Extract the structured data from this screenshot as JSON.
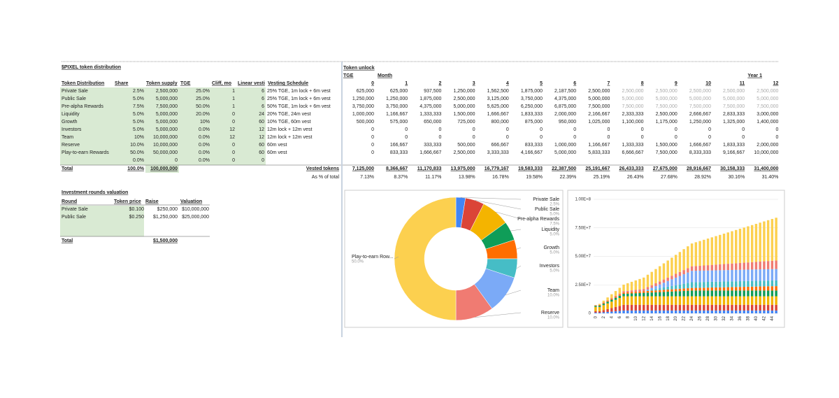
{
  "distribution": {
    "title": "$PIXEL token distribution",
    "columns": [
      "Token Distribution",
      "Share",
      "Token supply",
      "TGE",
      "Cliff, mo",
      "Linear vesti",
      "Vesting Schedule"
    ],
    "rows": [
      [
        "Private Sale",
        "2.5%",
        "2,500,000",
        "25.0%",
        "1",
        "6",
        "25% TGE, 1m lock + 6m vest"
      ],
      [
        "Public Sale",
        "5.0%",
        "5,000,000",
        "25.0%",
        "1",
        "6",
        "25% TGE, 1m lock + 6m vest"
      ],
      [
        "Pre-alpha Rewards",
        "7.5%",
        "7,500,000",
        "50.0%",
        "1",
        "6",
        "50% TGE, 1m lock + 6m vest"
      ],
      [
        "Liquidity",
        "5.0%",
        "5,000,000",
        "20.0%",
        "0",
        "24",
        "20% TGE, 24m vest"
      ],
      [
        "Growth",
        "5.0%",
        "5,000,000",
        "10%",
        "0",
        "60",
        "10% TGE, 60m vest"
      ],
      [
        "Investors",
        "5.0%",
        "5,000,000",
        "0.0%",
        "12",
        "12",
        "12m lock + 12m vest"
      ],
      [
        "Team",
        "10%",
        "10,000,000",
        "0.0%",
        "12",
        "12",
        "12m lock + 12m vest"
      ],
      [
        "Reserve",
        "10.0%",
        "10,000,000",
        "0.0%",
        "0",
        "60",
        "60m vest"
      ],
      [
        "Play-to-earn Rewards",
        "50.0%",
        "50,000,000",
        "0.0%",
        "0",
        "60",
        "60m vest"
      ],
      [
        null,
        "0.0%",
        "0",
        "0.0%",
        "0",
        "0",
        null
      ]
    ],
    "total": [
      "Total",
      "100.0%",
      "100,000,000"
    ]
  },
  "unlock": {
    "title": "Token unlock",
    "tge": "TGE",
    "month": "Month",
    "year": "Year 1",
    "columns": [
      "0",
      "1",
      "2",
      "3",
      "4",
      "5",
      "6",
      "7",
      "8",
      "9",
      "10",
      "11",
      "12"
    ],
    "rows": [
      [
        "625,000",
        "625,000",
        "937,500",
        "1,250,000",
        "1,562,500",
        "1,875,000",
        "2,187,500",
        "2,500,000",
        "2,500,000",
        "2,500,000",
        "2,500,000",
        "2,500,000",
        "2,500,000"
      ],
      [
        "1,250,000",
        "1,250,000",
        "1,875,000",
        "2,500,000",
        "3,125,000",
        "3,750,000",
        "4,375,000",
        "5,000,000",
        "5,000,000",
        "5,000,000",
        "5,000,000",
        "5,000,000",
        "5,000,000"
      ],
      [
        "3,750,000",
        "3,750,000",
        "4,375,000",
        "5,000,000",
        "5,625,000",
        "6,250,000",
        "6,875,000",
        "7,500,000",
        "7,500,000",
        "7,500,000",
        "7,500,000",
        "7,500,000",
        "7,500,000"
      ],
      [
        "1,000,000",
        "1,166,667",
        "1,333,333",
        "1,500,000",
        "1,666,667",
        "1,833,333",
        "2,000,000",
        "2,166,667",
        "2,333,333",
        "2,500,000",
        "2,666,667",
        "2,833,333",
        "3,000,000"
      ],
      [
        "500,000",
        "575,000",
        "650,000",
        "725,000",
        "800,000",
        "875,000",
        "950,000",
        "1,025,000",
        "1,100,000",
        "1,175,000",
        "1,250,000",
        "1,325,000",
        "1,400,000"
      ],
      [
        "0",
        "0",
        "0",
        "0",
        "0",
        "0",
        "0",
        "0",
        "0",
        "0",
        "0",
        "0",
        "0"
      ],
      [
        "0",
        "0",
        "0",
        "0",
        "0",
        "0",
        "0",
        "0",
        "0",
        "0",
        "0",
        "0",
        "0"
      ],
      [
        "0",
        "166,667",
        "333,333",
        "500,000",
        "666,667",
        "833,333",
        "1,000,000",
        "1,166,667",
        "1,333,333",
        "1,500,000",
        "1,666,667",
        "1,833,333",
        "2,000,000"
      ],
      [
        "0",
        "833,333",
        "1,666,667",
        "2,500,000",
        "3,333,333",
        "4,166,667",
        "5,000,000",
        "5,833,333",
        "6,666,667",
        "7,500,000",
        "8,333,333",
        "9,166,667",
        "10,000,000"
      ]
    ],
    "vested_label": "Vested tokens",
    "vested": [
      "7,125,000",
      "8,366,667",
      "11,170,833",
      "13,975,000",
      "16,779,167",
      "19,583,333",
      "22,387,500",
      "25,191,667",
      "26,433,333",
      "27,675,000",
      "28,916,667",
      "30,158,333",
      "31,400,000"
    ],
    "percent_label": "As % of total",
    "percent": [
      "7.13%",
      "8.37%",
      "11.17%",
      "13.98%",
      "16.78%",
      "19.58%",
      "22.39%",
      "25.19%",
      "26.43%",
      "27.68%",
      "28.92%",
      "30.16%",
      "31.40%"
    ]
  },
  "rounds": {
    "title": "Investment rounds valuation",
    "columns": [
      "Round",
      "Token price",
      "Raise",
      "Valuation"
    ],
    "rows": [
      [
        "Private Sale",
        "$0.100",
        "$250,000",
        "$10,000,000"
      ],
      [
        "Public Sale",
        "$0.250",
        "$1,250,000",
        "$25,000,000"
      ]
    ],
    "total": [
      "Total",
      "$1,500,000"
    ]
  },
  "chart_data": [
    {
      "type": "pie",
      "categories": [
        "Private Sale",
        "Public Sale",
        "Pre-alpha Rewards",
        "Liquidity",
        "Growth",
        "Investors",
        "Team",
        "Reserve",
        "Play-to-earn Row..."
      ],
      "values": [
        2.5,
        5,
        7.5,
        5,
        5,
        5,
        10,
        10,
        50
      ],
      "value_labels": [
        "2.5%",
        "5.0%",
        "7.5%",
        "5.0%",
        "5.0%",
        "5.0%",
        "10.0%",
        "10.0%",
        "50.0%"
      ],
      "colors": [
        "#4285f4",
        "#db4437",
        "#f4b400",
        "#0f9d58",
        "#ff6d01",
        "#46bdc6",
        "#7baaf7",
        "#f07b72",
        "#fcd04f"
      ]
    },
    {
      "type": "stacked_bar",
      "categories": [
        "0",
        null,
        "2",
        null,
        "4",
        null,
        "6",
        null,
        "8",
        null,
        "10",
        null,
        "12",
        null,
        "14",
        null,
        "16",
        null,
        "18",
        null,
        "20",
        null,
        "22",
        null,
        "24",
        null,
        "26",
        null,
        "28",
        null,
        "30",
        null,
        "32",
        null,
        "34",
        null,
        "36",
        null,
        "38",
        null,
        "40",
        null,
        "42",
        null,
        "44",
        null
      ],
      "ylim": [
        0,
        100000000
      ],
      "yticks": [
        0,
        {
          "value": 25000000,
          "label": "2.50E+7"
        },
        {
          "value": 50000000,
          "label": "5.00E+7"
        },
        {
          "value": 75000000,
          "label": "7.50E+7"
        },
        {
          "value": 100000000,
          "label": "1.00E+8"
        }
      ],
      "grid": true,
      "series": [
        {
          "name": "Private Sale",
          "color": "#4285f4",
          "values": [
            625000,
            625000,
            937500,
            1250000,
            1562500,
            1875000,
            2187500,
            2500000,
            2500000,
            2500000,
            2500000,
            2500000,
            2500000,
            2500000,
            2500000,
            2500000,
            2500000,
            2500000,
            2500000,
            2500000,
            2500000,
            2500000,
            2500000,
            2500000,
            2500000,
            2500000,
            2500000,
            2500000,
            2500000,
            2500000,
            2500000,
            2500000,
            2500000,
            2500000,
            2500000,
            2500000,
            2500000,
            2500000,
            2500000,
            2500000,
            2500000,
            2500000,
            2500000,
            2500000,
            2500000,
            2500000
          ]
        },
        {
          "name": "Public Sale",
          "color": "#db4437",
          "values": [
            1250000,
            1250000,
            1875000,
            2500000,
            3125000,
            3750000,
            4375000,
            5000000,
            5000000,
            5000000,
            5000000,
            5000000,
            5000000,
            5000000,
            5000000,
            5000000,
            5000000,
            5000000,
            5000000,
            5000000,
            5000000,
            5000000,
            5000000,
            5000000,
            5000000,
            5000000,
            5000000,
            5000000,
            5000000,
            5000000,
            5000000,
            5000000,
            5000000,
            5000000,
            5000000,
            5000000,
            5000000,
            5000000,
            5000000,
            5000000,
            5000000,
            5000000,
            5000000,
            5000000,
            5000000,
            5000000
          ]
        },
        {
          "name": "Pre-alpha Rewards",
          "color": "#f4b400",
          "values": [
            3750000,
            3750000,
            4375000,
            5000000,
            5625000,
            6250000,
            6875000,
            7500000,
            7500000,
            7500000,
            7500000,
            7500000,
            7500000,
            7500000,
            7500000,
            7500000,
            7500000,
            7500000,
            7500000,
            7500000,
            7500000,
            7500000,
            7500000,
            7500000,
            7500000,
            7500000,
            7500000,
            7500000,
            7500000,
            7500000,
            7500000,
            7500000,
            7500000,
            7500000,
            7500000,
            7500000,
            7500000,
            7500000,
            7500000,
            7500000,
            7500000,
            7500000,
            7500000,
            7500000,
            7500000,
            7500000
          ]
        },
        {
          "name": "Liquidity",
          "color": "#0f9d58",
          "values": [
            1000000,
            1166667,
            1333333,
            1500000,
            1666667,
            1833333,
            2000000,
            2166667,
            2333333,
            2500000,
            2666667,
            2833333,
            3000000,
            3166667,
            3333333,
            3500000,
            3666667,
            3833333,
            4000000,
            4166667,
            4333333,
            4500000,
            4666667,
            4833333,
            5000000,
            5000000,
            5000000,
            5000000,
            5000000,
            5000000,
            5000000,
            5000000,
            5000000,
            5000000,
            5000000,
            5000000,
            5000000,
            5000000,
            5000000,
            5000000,
            5000000,
            5000000,
            5000000,
            5000000,
            5000000,
            5000000
          ]
        },
        {
          "name": "Growth",
          "color": "#ff6d01",
          "values": [
            500000,
            575000,
            650000,
            725000,
            800000,
            875000,
            950000,
            1025000,
            1100000,
            1175000,
            1250000,
            1325000,
            1400000,
            1475000,
            1550000,
            1625000,
            1700000,
            1775000,
            1850000,
            1925000,
            2000000,
            2075000,
            2150000,
            2225000,
            2300000,
            2375000,
            2450000,
            2525000,
            2600000,
            2675000,
            2750000,
            2825000,
            2900000,
            2975000,
            3050000,
            3125000,
            3200000,
            3275000,
            3350000,
            3425000,
            3500000,
            3575000,
            3650000,
            3725000,
            3800000,
            3875000
          ]
        },
        {
          "name": "Investors",
          "color": "#46bdc6",
          "values": [
            0,
            0,
            0,
            0,
            0,
            0,
            0,
            0,
            0,
            0,
            0,
            0,
            0,
            416667,
            833333,
            1250000,
            1666667,
            2083333,
            2500000,
            2916667,
            3333333,
            3750000,
            4166667,
            4583333,
            5000000,
            5000000,
            5000000,
            5000000,
            5000000,
            5000000,
            5000000,
            5000000,
            5000000,
            5000000,
            5000000,
            5000000,
            5000000,
            5000000,
            5000000,
            5000000,
            5000000,
            5000000,
            5000000,
            5000000,
            5000000,
            5000000
          ]
        },
        {
          "name": "Team",
          "color": "#7baaf7",
          "values": [
            0,
            0,
            0,
            0,
            0,
            0,
            0,
            0,
            0,
            0,
            0,
            0,
            0,
            833333,
            1666667,
            2500000,
            3333333,
            4166667,
            5000000,
            5833333,
            6666667,
            7500000,
            8333333,
            9166667,
            10000000,
            10000000,
            10000000,
            10000000,
            10000000,
            10000000,
            10000000,
            10000000,
            10000000,
            10000000,
            10000000,
            10000000,
            10000000,
            10000000,
            10000000,
            10000000,
            10000000,
            10000000,
            10000000,
            10000000,
            10000000,
            10000000
          ]
        },
        {
          "name": "Reserve",
          "color": "#f07b72",
          "values": [
            0,
            166667,
            333333,
            500000,
            666667,
            833333,
            1000000,
            1166667,
            1333333,
            1500000,
            1666667,
            1833333,
            2000000,
            2166667,
            2333333,
            2500000,
            2666667,
            2833333,
            3000000,
            3166667,
            3333333,
            3500000,
            3666667,
            3833333,
            4000000,
            4166667,
            4333333,
            4500000,
            4666667,
            4833333,
            5000000,
            5166667,
            5333333,
            5500000,
            5666667,
            5833333,
            6000000,
            6166667,
            6333333,
            6500000,
            6666667,
            6833333,
            7000000,
            7166667,
            7333333,
            7500000
          ]
        },
        {
          "name": "Play-to-earn Rewards",
          "color": "#fcd04f",
          "values": [
            0,
            833333,
            1666667,
            2500000,
            3333333,
            4166667,
            5000000,
            5833333,
            6666667,
            7500000,
            8333333,
            9166667,
            10000000,
            10833333,
            11666667,
            12500000,
            13333333,
            14166667,
            15000000,
            15833333,
            16666667,
            17500000,
            18333333,
            19166667,
            20000000,
            20833333,
            21666667,
            22500000,
            23333333,
            24166667,
            25000000,
            25833333,
            26666667,
            27500000,
            28333333,
            29166667,
            30000000,
            30833333,
            31666667,
            32500000,
            33333333,
            34166667,
            35000000,
            35833333,
            36666667,
            37500000
          ]
        }
      ]
    }
  ]
}
